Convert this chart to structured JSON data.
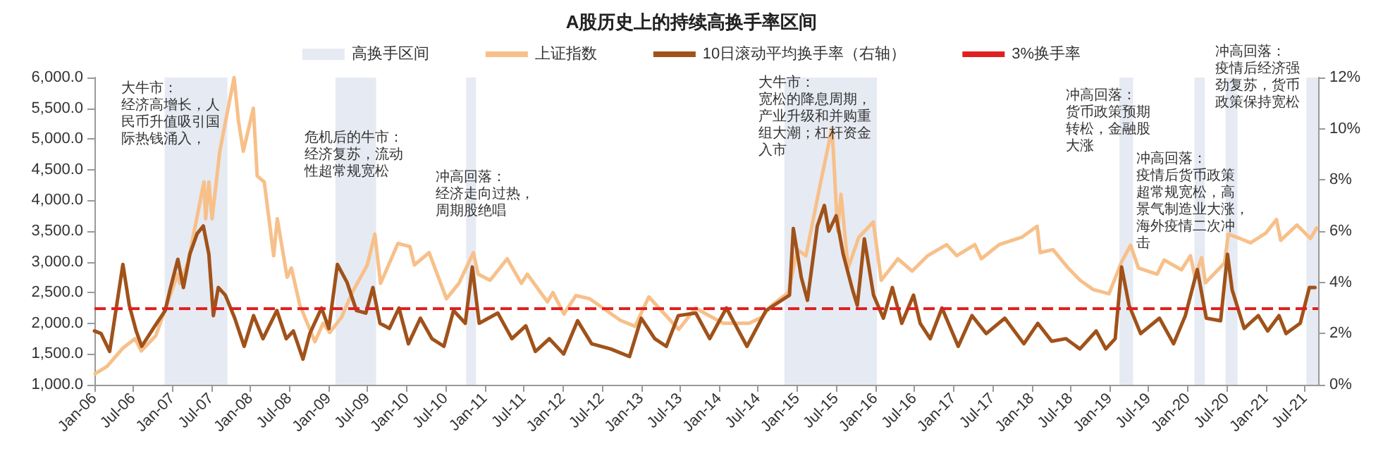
{
  "chart_data": {
    "type": "line",
    "title": "A股历史上的持续高换手率区间",
    "legend": "top",
    "grid": false,
    "marker": "none",
    "line_style": "solid",
    "xlim": [
      "2006-01-01",
      "2021-09-01"
    ],
    "xticks": [
      {
        "value": "2006-01-01",
        "label": "Jan-06"
      },
      {
        "value": "2006-07-01",
        "label": "Jul-06"
      },
      {
        "value": "2007-01-01",
        "label": "Jan-07"
      },
      {
        "value": "2007-07-01",
        "label": "Jul-07"
      },
      {
        "value": "2008-01-01",
        "label": "Jan-08"
      },
      {
        "value": "2008-07-01",
        "label": "Jul-08"
      },
      {
        "value": "2009-01-01",
        "label": "Jan-09"
      },
      {
        "value": "2009-07-01",
        "label": "Jul-09"
      },
      {
        "value": "2010-01-01",
        "label": "Jan-10"
      },
      {
        "value": "2010-07-01",
        "label": "Jul-10"
      },
      {
        "value": "2011-01-01",
        "label": "Jan-11"
      },
      {
        "value": "2011-07-01",
        "label": "Jul-11"
      },
      {
        "value": "2012-01-01",
        "label": "Jan-12"
      },
      {
        "value": "2012-07-01",
        "label": "Jul-12"
      },
      {
        "value": "2013-01-01",
        "label": "Jan-13"
      },
      {
        "value": "2013-07-01",
        "label": "Jul-13"
      },
      {
        "value": "2014-01-01",
        "label": "Jan-14"
      },
      {
        "value": "2014-07-01",
        "label": "Jul-14"
      },
      {
        "value": "2015-01-01",
        "label": "Jan-15"
      },
      {
        "value": "2015-07-01",
        "label": "Jul-15"
      },
      {
        "value": "2016-01-01",
        "label": "Jan-16"
      },
      {
        "value": "2016-07-01",
        "label": "Jul-16"
      },
      {
        "value": "2017-01-01",
        "label": "Jan-17"
      },
      {
        "value": "2017-07-01",
        "label": "Jul-17"
      },
      {
        "value": "2018-01-01",
        "label": "Jan-18"
      },
      {
        "value": "2018-07-01",
        "label": "Jul-18"
      },
      {
        "value": "2019-01-01",
        "label": "Jan-19"
      },
      {
        "value": "2019-07-01",
        "label": "Jul-19"
      },
      {
        "value": "2020-01-01",
        "label": "Jan-20"
      },
      {
        "value": "2020-07-01",
        "label": "Jul-20"
      },
      {
        "value": "2021-01-01",
        "label": "Jan-21"
      },
      {
        "value": "2021-07-01",
        "label": "Jul-21"
      }
    ],
    "ylim": [
      1000,
      6000
    ],
    "yticks": [
      {
        "value": 1000,
        "label": "1,000.0"
      },
      {
        "value": 1500,
        "label": "1,500.0"
      },
      {
        "value": 2000,
        "label": "2,000.0"
      },
      {
        "value": 2500,
        "label": "2,500.0"
      },
      {
        "value": 3000,
        "label": "3,000.0"
      },
      {
        "value": 3500,
        "label": "3,500.0"
      },
      {
        "value": 4000,
        "label": "4,000.0"
      },
      {
        "value": 4500,
        "label": "4,500.0"
      },
      {
        "value": 5000,
        "label": "5,000.0"
      },
      {
        "value": 5500,
        "label": "5,500.0"
      },
      {
        "value": 6000,
        "label": "6,000.0"
      }
    ],
    "y2lim": [
      0,
      12
    ],
    "y2ticks": [
      {
        "value": 0,
        "label": "0%"
      },
      {
        "value": 2,
        "label": "2%"
      },
      {
        "value": 4,
        "label": "4%"
      },
      {
        "value": 6,
        "label": "6%"
      },
      {
        "value": 8,
        "label": "8%"
      },
      {
        "value": 10,
        "label": "10%"
      },
      {
        "value": 12,
        "label": "12%"
      }
    ],
    "bands": [
      {
        "axis": "x",
        "from": "2006-11-25",
        "to": "2007-09-15",
        "label": "高换手区间",
        "color": "#e6eaf2"
      },
      {
        "axis": "x",
        "from": "2009-02-01",
        "to": "2009-08-10",
        "color": "#e6eaf2"
      },
      {
        "axis": "x",
        "from": "2010-10-05",
        "to": "2010-11-20",
        "color": "#e6eaf2"
      },
      {
        "axis": "x",
        "from": "2014-11-01",
        "to": "2016-01-08",
        "color": "#e6eaf2"
      },
      {
        "axis": "x",
        "from": "2019-02-15",
        "to": "2019-04-20",
        "color": "#e6eaf2"
      },
      {
        "axis": "x",
        "from": "2020-02-01",
        "to": "2020-03-20",
        "color": "#e6eaf2"
      },
      {
        "axis": "x",
        "from": "2020-06-25",
        "to": "2020-08-20",
        "color": "#e6eaf2"
      },
      {
        "axis": "x",
        "from": "2021-07-08",
        "to": "2021-09-01",
        "color": "#e6eaf2"
      }
    ],
    "ref_lines": [
      {
        "axis": "y2",
        "value": 3,
        "label": "3%换手率",
        "color": "#e02020",
        "line_style": "dashed"
      }
    ],
    "series": [
      {
        "name": "上证指数",
        "color": "#f7c08a",
        "x": [
          "2006-01-04",
          "2006-03-01",
          "2006-05-15",
          "2006-07-10",
          "2006-08-08",
          "2006-10-15",
          "2006-12-15",
          "2007-01-25",
          "2007-02-05",
          "2007-03-15",
          "2007-05-28",
          "2007-06-05",
          "2007-06-20",
          "2007-07-05",
          "2007-08-10",
          "2007-10-16",
          "2007-11-05",
          "2007-11-28",
          "2008-01-14",
          "2008-02-01",
          "2008-03-05",
          "2008-04-18",
          "2008-05-05",
          "2008-06-20",
          "2008-07-10",
          "2008-08-18",
          "2008-10-28",
          "2008-12-05",
          "2009-01-05",
          "2009-03-02",
          "2009-04-20",
          "2009-06-30",
          "2009-08-04",
          "2009-08-31",
          "2009-11-20",
          "2010-01-15",
          "2010-02-05",
          "2010-04-15",
          "2010-07-05",
          "2010-09-01",
          "2010-11-08",
          "2010-11-30",
          "2011-01-25",
          "2011-04-15",
          "2011-06-20",
          "2011-07-18",
          "2011-10-20",
          "2011-11-15",
          "2012-01-05",
          "2012-03-01",
          "2012-05-05",
          "2012-09-25",
          "2012-12-03",
          "2013-02-05",
          "2013-06-25",
          "2013-09-12",
          "2013-11-01",
          "2014-01-20",
          "2014-03-10",
          "2014-05-20",
          "2014-07-20",
          "2014-09-05",
          "2014-11-20",
          "2014-12-31",
          "2015-02-10",
          "2015-04-20",
          "2015-06-12",
          "2015-07-08",
          "2015-07-24",
          "2015-08-26",
          "2015-10-15",
          "2015-12-22",
          "2016-01-28",
          "2016-04-15",
          "2016-06-20",
          "2016-09-01",
          "2016-11-29",
          "2017-01-15",
          "2017-04-10",
          "2017-05-10",
          "2017-08-01",
          "2017-11-15",
          "2018-01-26",
          "2018-02-09",
          "2018-04-10",
          "2018-06-20",
          "2018-08-15",
          "2018-10-15",
          "2018-12-28",
          "2019-02-25",
          "2019-04-08",
          "2019-05-15",
          "2019-08-10",
          "2019-09-12",
          "2019-12-02",
          "2020-01-13",
          "2020-02-03",
          "2020-03-05",
          "2020-03-23",
          "2020-06-20",
          "2020-07-08",
          "2020-09-01",
          "2020-10-20",
          "2020-12-31",
          "2021-02-18",
          "2021-03-10",
          "2021-05-25",
          "2021-07-27",
          "2021-08-25"
        ],
        "values": [
          1180,
          1300,
          1600,
          1750,
          1550,
          1800,
          2400,
          2800,
          2650,
          3000,
          4300,
          3700,
          4300,
          3700,
          4800,
          6000,
          5300,
          4800,
          5500,
          4400,
          4300,
          3100,
          3700,
          2750,
          2900,
          2300,
          1700,
          2000,
          1850,
          2100,
          2500,
          2950,
          3450,
          2650,
          3300,
          3250,
          2950,
          3150,
          2400,
          2650,
          3150,
          2800,
          2700,
          3050,
          2650,
          2800,
          2350,
          2500,
          2150,
          2450,
          2400,
          2050,
          1950,
          2430,
          1900,
          2250,
          2150,
          2000,
          2000,
          2000,
          2100,
          2300,
          2500,
          3200,
          3100,
          4300,
          5180,
          3500,
          4100,
          2900,
          3400,
          3650,
          2700,
          3050,
          2850,
          3100,
          3280,
          3100,
          3280,
          3050,
          3280,
          3400,
          3580,
          3150,
          3200,
          2900,
          2700,
          2550,
          2480,
          3000,
          3270,
          2900,
          2800,
          3030,
          2870,
          3100,
          2750,
          3070,
          2660,
          2980,
          3450,
          3380,
          3310,
          3470,
          3690,
          3350,
          3600,
          3380,
          3550
        ]
      },
      {
        "name": "10日滚动平均换手率（右轴）",
        "color": "#a0521a",
        "axis": "y2",
        "x": [
          "2006-01-01",
          "2006-02-01",
          "2006-03-13",
          "2006-05-14",
          "2006-06-13",
          "2006-07-15",
          "2006-08-10",
          "2006-10-11",
          "2006-11-28",
          "2006-12-20",
          "2007-01-26",
          "2007-02-21",
          "2007-03-23",
          "2007-04-26",
          "2007-05-25",
          "2007-06-20",
          "2007-07-11",
          "2007-08-03",
          "2007-09-05",
          "2007-10-19",
          "2007-12-02",
          "2008-01-15",
          "2008-02-28",
          "2008-05-03",
          "2008-06-16",
          "2008-07-19",
          "2008-09-02",
          "2008-10-04",
          "2008-11-28",
          "2009-01-01",
          "2009-02-10",
          "2009-03-27",
          "2009-05-10",
          "2009-06-23",
          "2009-07-26",
          "2009-08-28",
          "2009-10-11",
          "2009-11-25",
          "2010-01-08",
          "2010-03-05",
          "2010-04-28",
          "2010-06-23",
          "2010-08-07",
          "2010-10-01",
          "2010-11-03",
          "2010-12-05",
          "2011-03-02",
          "2011-05-07",
          "2011-07-11",
          "2011-08-25",
          "2011-10-29",
          "2012-01-04",
          "2012-03-09",
          "2012-05-14",
          "2012-08-10",
          "2012-11-07",
          "2013-01-01",
          "2013-03-05",
          "2013-04-28",
          "2013-06-23",
          "2013-09-13",
          "2013-11-17",
          "2014-02-03",
          "2014-05-10",
          "2014-08-07",
          "2014-10-01",
          "2014-11-25",
          "2014-12-13",
          "2015-01-19",
          "2015-02-17",
          "2015-04-04",
          "2015-05-07",
          "2015-05-28",
          "2015-07-01",
          "2015-08-03",
          "2015-09-16",
          "2015-10-08",
          "2015-11-10",
          "2015-12-23",
          "2016-02-07",
          "2016-03-20",
          "2016-05-03",
          "2016-06-27",
          "2016-07-28",
          "2016-09-13",
          "2016-11-07",
          "2017-01-22",
          "2017-03-27",
          "2017-06-02",
          "2017-08-28",
          "2017-11-25",
          "2018-01-29",
          "2018-04-04",
          "2018-06-09",
          "2018-08-14",
          "2018-10-29",
          "2018-12-13",
          "2019-01-26",
          "2019-02-25",
          "2019-04-01",
          "2019-05-25",
          "2019-08-21",
          "2019-10-26",
          "2019-12-20",
          "2020-02-14",
          "2020-03-27",
          "2020-06-02",
          "2020-07-04",
          "2020-07-26",
          "2020-09-20",
          "2020-11-25",
          "2021-01-08",
          "2021-03-02",
          "2021-04-04",
          "2021-06-09",
          "2021-07-22",
          "2021-08-17"
        ],
        "values": [
          2.1,
          2.0,
          1.3,
          4.7,
          3.1,
          2.1,
          1.5,
          2.3,
          2.9,
          3.7,
          4.9,
          3.8,
          5.1,
          5.9,
          6.2,
          5.1,
          2.7,
          3.8,
          3.5,
          2.6,
          1.5,
          2.7,
          1.8,
          2.9,
          1.8,
          2.1,
          1.0,
          2.0,
          3.0,
          2.2,
          4.7,
          4.0,
          2.9,
          2.8,
          3.8,
          2.4,
          2.2,
          3.0,
          1.6,
          2.6,
          1.8,
          1.5,
          2.9,
          2.4,
          4.6,
          2.4,
          2.8,
          1.8,
          2.3,
          1.3,
          1.8,
          1.2,
          2.5,
          1.6,
          1.4,
          1.1,
          2.6,
          1.8,
          1.5,
          2.7,
          2.8,
          1.8,
          3.0,
          1.5,
          2.9,
          3.2,
          3.5,
          6.1,
          4.2,
          3.3,
          6.2,
          7.0,
          6.0,
          6.6,
          5.1,
          3.7,
          3.1,
          5.7,
          3.5,
          2.6,
          3.8,
          2.4,
          3.5,
          2.4,
          1.8,
          3.0,
          1.5,
          2.7,
          2.0,
          2.6,
          1.6,
          2.4,
          1.7,
          1.8,
          1.4,
          2.1,
          1.4,
          1.8,
          4.6,
          3.1,
          2.0,
          2.6,
          1.6,
          2.7,
          4.5,
          2.6,
          2.5,
          5.1,
          3.7,
          2.2,
          2.7,
          2.1,
          2.7,
          2.0,
          2.4,
          3.8,
          3.8
        ]
      }
    ],
    "annotations": [
      "大牛市：经济高增长，人民币升值吸引国际热钱涌入，",
      "危机后的牛市：经济复苏，流动性超常规宽松",
      "冲高回落：经济走向过热，周期股绝唱",
      "大牛市：宽松的降息周期，产业升级和并购重组大潮；杠杆资金入市",
      "冲高回落：货币政策预期转松，金融股大涨",
      "冲高回落：疫情后货币政策超常规宽松，高景气制造业大涨，海外疫情二次冲击",
      "冲高回落：疫情后经济强劲复苏，货币政策保持宽松"
    ]
  }
}
